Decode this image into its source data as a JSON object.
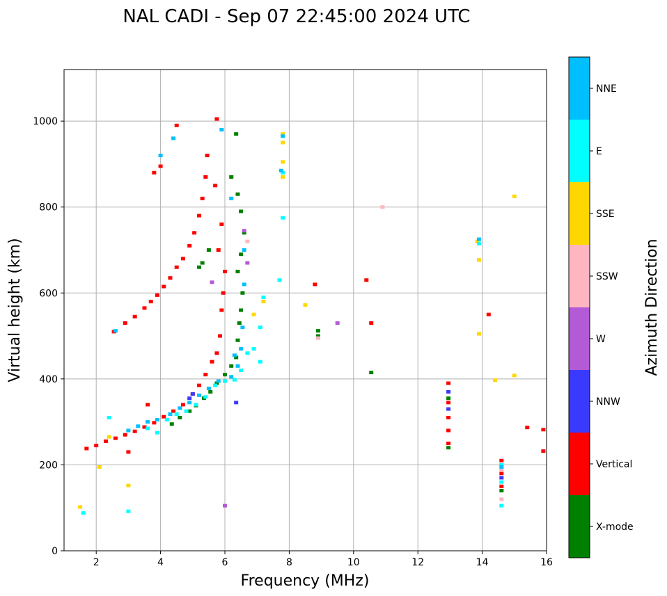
{
  "chart_data": {
    "type": "scatter",
    "title": "NAL CADI - Sep 07 22:45:00 2024 UTC",
    "xlabel": "Frequency (MHz)",
    "ylabel": "Virtual height (km)",
    "xlim": [
      1,
      16
    ],
    "ylim": [
      0,
      1120
    ],
    "xticks": [
      2,
      4,
      6,
      8,
      10,
      12,
      14,
      16
    ],
    "yticks": [
      0,
      200,
      400,
      600,
      800,
      1000
    ],
    "grid": true,
    "colorbar": {
      "label": "Azimuth Direction",
      "categories": [
        {
          "name": "X-mode",
          "color": "#008000"
        },
        {
          "name": "Vertical",
          "color": "#ff0000"
        },
        {
          "name": "NNW",
          "color": "#3a3aff"
        },
        {
          "name": "W",
          "color": "#b35ad6"
        },
        {
          "name": "SSW",
          "color": "#ffb6c1"
        },
        {
          "name": "SSE",
          "color": "#ffd700"
        },
        {
          "name": "E",
          "color": "#00ffff"
        },
        {
          "name": "NNE",
          "color": "#00bfff"
        }
      ]
    },
    "series": [
      {
        "name": "X-mode",
        "points": [
          [
            4.35,
            295
          ],
          [
            4.6,
            310
          ],
          [
            4.9,
            325
          ],
          [
            5.1,
            338
          ],
          [
            5.35,
            355
          ],
          [
            5.55,
            370
          ],
          [
            5.75,
            390
          ],
          [
            6.0,
            410
          ],
          [
            6.2,
            430
          ],
          [
            6.35,
            450
          ],
          [
            6.4,
            490
          ],
          [
            6.45,
            530
          ],
          [
            6.5,
            560
          ],
          [
            6.55,
            600
          ],
          [
            6.4,
            650
          ],
          [
            6.5,
            690
          ],
          [
            6.6,
            740
          ],
          [
            6.5,
            790
          ],
          [
            6.4,
            830
          ],
          [
            6.2,
            870
          ],
          [
            6.35,
            970
          ],
          [
            5.3,
            670
          ],
          [
            5.5,
            700
          ],
          [
            5.2,
            660
          ],
          [
            8.9,
            500
          ],
          [
            8.9,
            512
          ],
          [
            10.55,
            415
          ],
          [
            12.95,
            240
          ],
          [
            12.95,
            355
          ],
          [
            14.6,
            140
          ]
        ]
      },
      {
        "name": "Vertical",
        "points": [
          [
            1.7,
            238
          ],
          [
            2.0,
            245
          ],
          [
            2.3,
            255
          ],
          [
            2.6,
            262
          ],
          [
            2.9,
            270
          ],
          [
            3.2,
            278
          ],
          [
            3.5,
            288
          ],
          [
            3.8,
            298
          ],
          [
            4.1,
            312
          ],
          [
            4.4,
            325
          ],
          [
            4.7,
            340
          ],
          [
            5.0,
            365
          ],
          [
            5.2,
            385
          ],
          [
            5.4,
            410
          ],
          [
            5.6,
            440
          ],
          [
            5.75,
            460
          ],
          [
            5.85,
            500
          ],
          [
            5.9,
            560
          ],
          [
            5.95,
            600
          ],
          [
            6.0,
            650
          ],
          [
            5.8,
            700
          ],
          [
            5.9,
            760
          ],
          [
            5.7,
            850
          ],
          [
            5.75,
            1005
          ],
          [
            2.55,
            510
          ],
          [
            2.9,
            530
          ],
          [
            3.2,
            545
          ],
          [
            3.5,
            565
          ],
          [
            3.7,
            580
          ],
          [
            3.9,
            595
          ],
          [
            4.1,
            615
          ],
          [
            4.3,
            635
          ],
          [
            4.5,
            660
          ],
          [
            4.7,
            680
          ],
          [
            4.9,
            710
          ],
          [
            5.05,
            740
          ],
          [
            5.2,
            780
          ],
          [
            5.3,
            820
          ],
          [
            5.4,
            870
          ],
          [
            5.45,
            920
          ],
          [
            3.8,
            880
          ],
          [
            4.0,
            895
          ],
          [
            4.5,
            990
          ],
          [
            3.0,
            230
          ],
          [
            3.6,
            340
          ],
          [
            8.8,
            620
          ],
          [
            10.4,
            630
          ],
          [
            10.55,
            530
          ],
          [
            14.2,
            550
          ],
          [
            12.95,
            250
          ],
          [
            12.95,
            280
          ],
          [
            12.95,
            310
          ],
          [
            12.95,
            345
          ],
          [
            12.95,
            390
          ],
          [
            14.6,
            210
          ],
          [
            14.6,
            180
          ],
          [
            14.6,
            150
          ],
          [
            15.4,
            287
          ],
          [
            15.9,
            282
          ],
          [
            15.9,
            232
          ]
        ]
      },
      {
        "name": "NNW",
        "points": [
          [
            6.35,
            345
          ],
          [
            12.95,
            330
          ],
          [
            12.95,
            370
          ],
          [
            14.6,
            170
          ],
          [
            5.0,
            365
          ],
          [
            4.9,
            355
          ]
        ]
      },
      {
        "name": "W",
        "points": [
          [
            6.0,
            105
          ],
          [
            9.5,
            530
          ],
          [
            6.7,
            670
          ],
          [
            6.6,
            745
          ],
          [
            5.6,
            625
          ]
        ]
      },
      {
        "name": "SSW",
        "points": [
          [
            10.9,
            800
          ],
          [
            6.7,
            720
          ],
          [
            8.9,
            495
          ],
          [
            14.6,
            120
          ],
          [
            14.6,
            190
          ]
        ]
      },
      {
        "name": "SSE",
        "points": [
          [
            1.5,
            102
          ],
          [
            2.1,
            195
          ],
          [
            2.4,
            265
          ],
          [
            3.0,
            152
          ],
          [
            8.5,
            572
          ],
          [
            13.9,
            505
          ],
          [
            13.9,
            677
          ],
          [
            14.4,
            397
          ],
          [
            15.0,
            408
          ],
          [
            15.0,
            825
          ],
          [
            7.8,
            870
          ],
          [
            7.8,
            905
          ],
          [
            7.8,
            950
          ],
          [
            7.8,
            970
          ],
          [
            6.9,
            550
          ],
          [
            7.2,
            580
          ],
          [
            13.85,
            720
          ]
        ]
      },
      {
        "name": "E",
        "points": [
          [
            1.6,
            88
          ],
          [
            2.4,
            310
          ],
          [
            3.0,
            92
          ],
          [
            3.6,
            285
          ],
          [
            3.9,
            275
          ],
          [
            4.2,
            305
          ],
          [
            4.5,
            318
          ],
          [
            4.8,
            325
          ],
          [
            5.1,
            340
          ],
          [
            5.4,
            358
          ],
          [
            5.7,
            385
          ],
          [
            6.0,
            395
          ],
          [
            6.3,
            398
          ],
          [
            6.5,
            420
          ],
          [
            6.9,
            470
          ],
          [
            7.1,
            520
          ],
          [
            7.2,
            590
          ],
          [
            7.7,
            630
          ],
          [
            7.8,
            775
          ],
          [
            7.8,
            880
          ],
          [
            14.6,
            105
          ],
          [
            14.6,
            160
          ],
          [
            14.6,
            200
          ],
          [
            13.9,
            715
          ],
          [
            7.1,
            440
          ],
          [
            6.7,
            460
          ]
        ]
      },
      {
        "name": "NNE",
        "points": [
          [
            3.0,
            280
          ],
          [
            3.3,
            290
          ],
          [
            3.6,
            300
          ],
          [
            3.9,
            305
          ],
          [
            4.3,
            318
          ],
          [
            4.6,
            332
          ],
          [
            4.9,
            345
          ],
          [
            5.2,
            362
          ],
          [
            5.5,
            378
          ],
          [
            5.8,
            395
          ],
          [
            6.2,
            405
          ],
          [
            6.4,
            430
          ],
          [
            6.5,
            470
          ],
          [
            6.55,
            520
          ],
          [
            6.6,
            620
          ],
          [
            6.6,
            700
          ],
          [
            6.2,
            820
          ],
          [
            5.9,
            980
          ],
          [
            4.4,
            960
          ],
          [
            4.0,
            920
          ],
          [
            2.6,
            512
          ],
          [
            7.75,
            885
          ],
          [
            7.8,
            965
          ],
          [
            13.9,
            725
          ],
          [
            14.6,
            195
          ],
          [
            6.3,
            455
          ]
        ]
      }
    ]
  }
}
